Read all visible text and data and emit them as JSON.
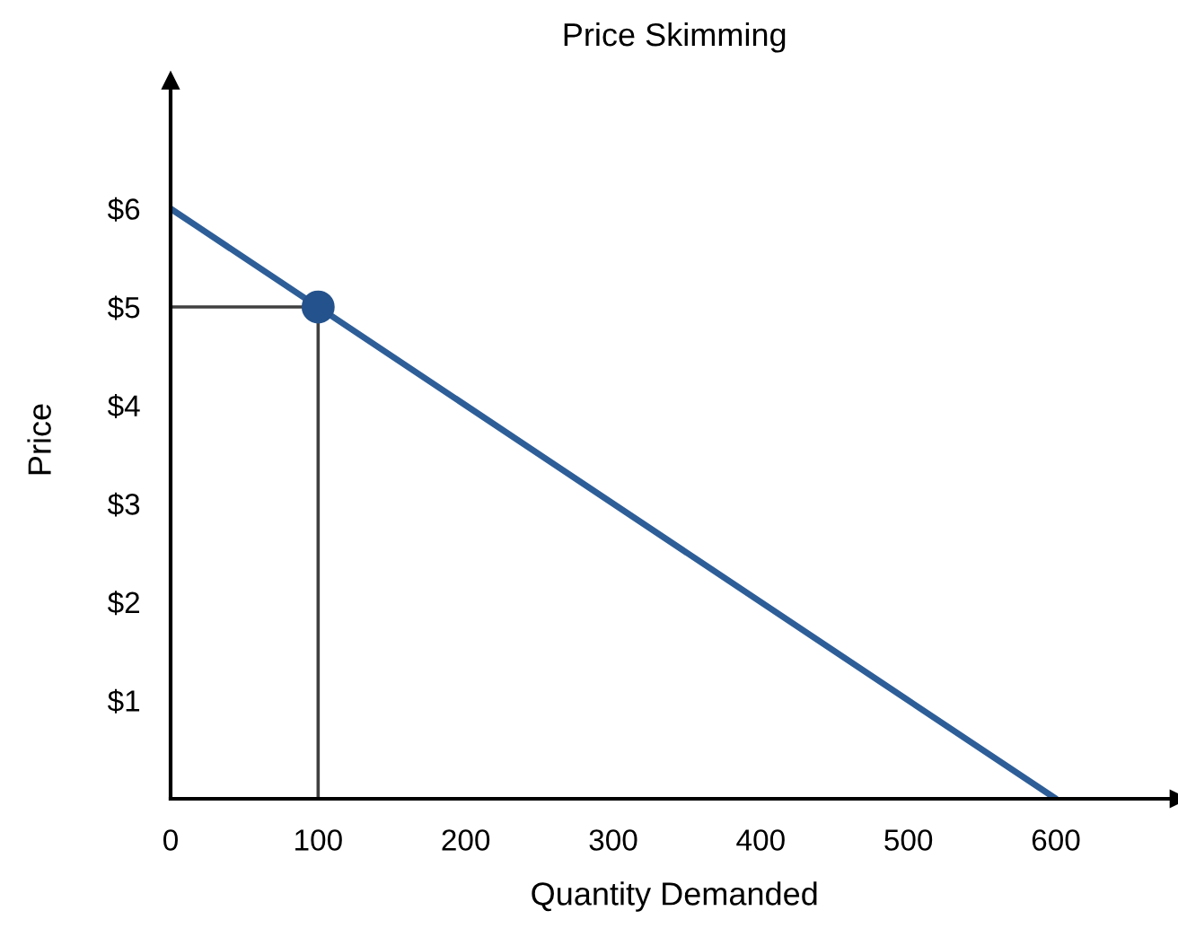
{
  "chart_data": {
    "type": "line",
    "title": "Price Skimming",
    "xlabel": "Quantity Demanded",
    "ylabel": "Price",
    "series": [
      {
        "x": [
          0,
          100,
          100
        ],
        "values": [
          5,
          5,
          0
        ],
        "color": "#404040"
      },
      {
        "x": [
          0,
          600
        ],
        "values": [
          6,
          0
        ],
        "color": "#2e5e98"
      },
      {
        "type": "scatter",
        "x": [
          100
        ],
        "values": [
          5
        ],
        "color": "#24528c",
        "marker": "circle"
      }
    ],
    "xlim": [
      0,
      683
    ],
    "ylim": [
      0,
      7.3
    ],
    "xticks": [
      0,
      100,
      200,
      300,
      400,
      500,
      600
    ],
    "yticks": [
      {
        "value": 1,
        "label": "$1"
      },
      {
        "value": 2,
        "label": "$2"
      },
      {
        "value": 3,
        "label": "$3"
      },
      {
        "value": 4,
        "label": "$4"
      },
      {
        "value": 5,
        "label": "$5"
      },
      {
        "value": 6,
        "label": "$6"
      }
    ],
    "grid": false,
    "legend": false
  }
}
